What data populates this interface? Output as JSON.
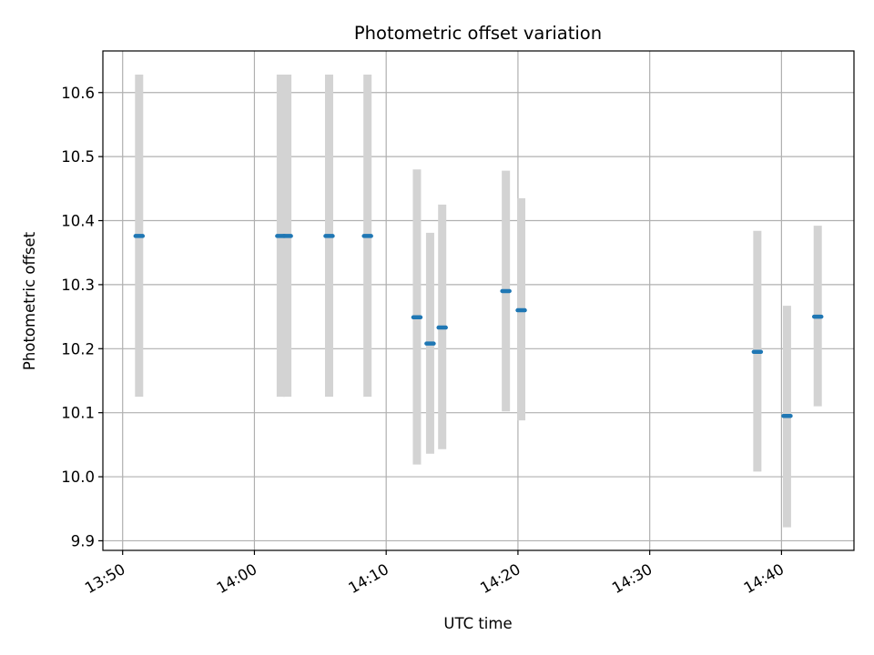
{
  "chart_data": {
    "type": "scatter",
    "title": "Photometric offset variation",
    "xlabel": "UTC time",
    "ylabel": "Photometric offset",
    "x_ticks": [
      "13:50",
      "14:00",
      "14:10",
      "14:20",
      "14:30",
      "14:40"
    ],
    "y_ticks": [
      "9.9",
      "10.0",
      "10.1",
      "10.2",
      "10.3",
      "10.4",
      "10.5",
      "10.6"
    ],
    "xlim": [
      "13:48:30",
      "14:45:30"
    ],
    "ylim": [
      9.885,
      10.665
    ],
    "grid": true,
    "colors": {
      "marker": "#1f77b4",
      "errorbar": "#d3d3d3",
      "grid": "#b0b0b0"
    },
    "points": [
      {
        "x": "13:51:15",
        "y": 10.376,
        "ylow": 10.125,
        "yhigh": 10.628
      },
      {
        "x": "14:02:00",
        "y": 10.376,
        "ylow": 10.125,
        "yhigh": 10.628
      },
      {
        "x": "14:02:30",
        "y": 10.376,
        "ylow": 10.125,
        "yhigh": 10.628
      },
      {
        "x": "14:05:40",
        "y": 10.376,
        "ylow": 10.125,
        "yhigh": 10.628
      },
      {
        "x": "14:08:35",
        "y": 10.376,
        "ylow": 10.125,
        "yhigh": 10.628
      },
      {
        "x": "14:12:20",
        "y": 10.249,
        "ylow": 10.019,
        "yhigh": 10.48
      },
      {
        "x": "14:13:20",
        "y": 10.208,
        "ylow": 10.036,
        "yhigh": 10.381
      },
      {
        "x": "14:14:15",
        "y": 10.233,
        "ylow": 10.043,
        "yhigh": 10.425
      },
      {
        "x": "14:19:05",
        "y": 10.29,
        "ylow": 10.102,
        "yhigh": 10.478
      },
      {
        "x": "14:20:15",
        "y": 10.26,
        "ylow": 10.088,
        "yhigh": 10.435
      },
      {
        "x": "14:38:10",
        "y": 10.195,
        "ylow": 10.008,
        "yhigh": 10.384
      },
      {
        "x": "14:40:25",
        "y": 10.095,
        "ylow": 9.921,
        "yhigh": 10.267
      },
      {
        "x": "14:42:45",
        "y": 10.25,
        "ylow": 10.11,
        "yhigh": 10.392
      }
    ]
  }
}
